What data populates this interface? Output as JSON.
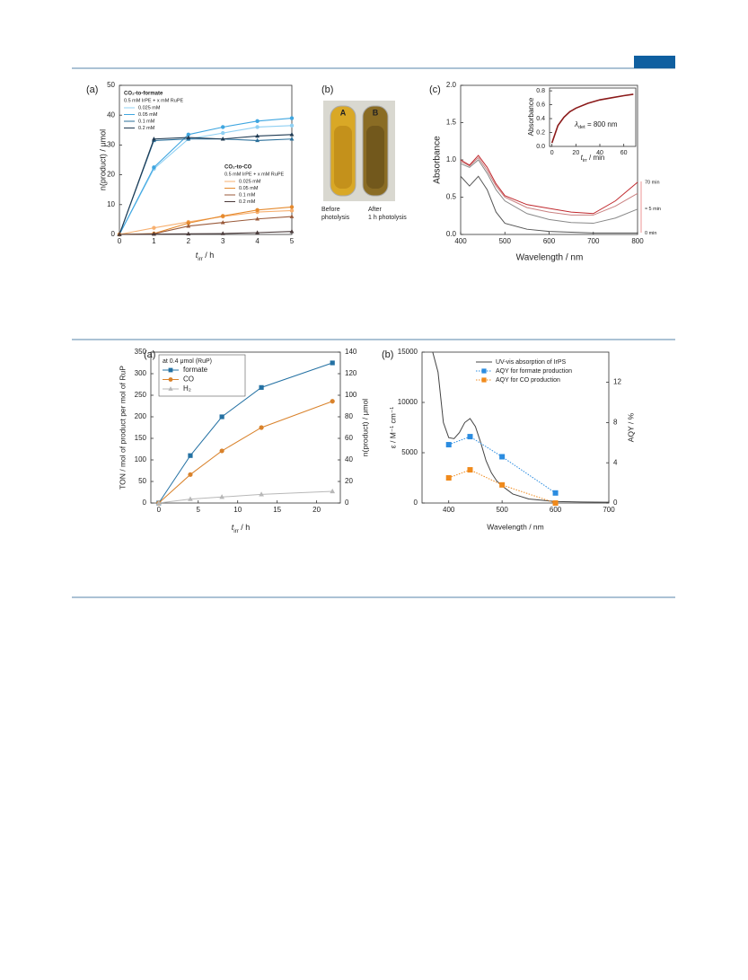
{
  "figure1": {
    "a": {
      "label": "(a)",
      "x_label": {
        "main": "t",
        "sub": "irr",
        "rest": " / h"
      },
      "y_label": "n(product) / μmol",
      "x": [
        0,
        1,
        2,
        3,
        4,
        5
      ],
      "xlim": [
        0,
        5
      ],
      "ylim": [
        0,
        50
      ],
      "xticks": [
        0,
        1,
        2,
        3,
        4,
        5
      ],
      "yticks": [
        0,
        10,
        20,
        30,
        40,
        50
      ],
      "legend_groups": [
        {
          "title": "CO₂-to-formate",
          "subtitle": "0.5 mM IrPE + x mM RuPE",
          "color": "#3aa0e0",
          "series": [
            {
              "name": "0.025 mM",
              "color": "#8fd0f3",
              "marker": "circle",
              "values": [
                0,
                22,
                32,
                34,
                36,
                36.5
              ]
            },
            {
              "name": "0.05 mM",
              "color": "#3fa6e0",
              "marker": "circle",
              "values": [
                0,
                22.5,
                33.5,
                36,
                38,
                39
              ]
            },
            {
              "name": "0.1 mM",
              "color": "#2a6f9a",
              "marker": "triangle",
              "values": [
                0,
                31.5,
                32,
                32,
                31.5,
                32
              ]
            },
            {
              "name": "0.2 mM",
              "color": "#1f3a52",
              "marker": "triangle",
              "values": [
                0,
                32,
                32.5,
                32,
                33,
                33.5
              ]
            }
          ]
        },
        {
          "title": "CO₂-to-CO",
          "subtitle": "0.5 mM IrPE + x mM RuPE",
          "color": "#f08a3c",
          "series": [
            {
              "name": "0.025 mM",
              "color": "#f7b070",
              "marker": "circle",
              "values": [
                0,
                2.2,
                4.2,
                6,
                7.5,
                8
              ]
            },
            {
              "name": "0.05 mM",
              "color": "#e58a2e",
              "marker": "circle",
              "values": [
                0,
                0.3,
                3.8,
                6.2,
                8.2,
                9.2
              ]
            },
            {
              "name": "0.1 mM",
              "color": "#9a5a3a",
              "marker": "triangle",
              "values": [
                0,
                0.2,
                2.8,
                4,
                5.2,
                6
              ]
            },
            {
              "name": "0.2 mM",
              "color": "#4a3a3a",
              "marker": "triangle",
              "values": [
                0,
                0.1,
                0.2,
                0.3,
                0.6,
                1
              ]
            }
          ]
        }
      ]
    },
    "b": {
      "label": "(b)",
      "tubes": [
        {
          "letter": "A",
          "caption": [
            "Before",
            "photolysis"
          ]
        },
        {
          "letter": "B",
          "caption": [
            "After",
            "1 h photolysis"
          ]
        }
      ]
    },
    "c": {
      "label": "(c)",
      "x_label": "Wavelength / nm",
      "y_label": "Absorbance",
      "x": [
        400,
        420,
        440,
        460,
        480,
        500,
        550,
        600,
        650,
        700,
        750,
        800
      ],
      "xlim": [
        400,
        800
      ],
      "ylim": [
        0,
        2
      ],
      "xticks": [
        400,
        500,
        600,
        700,
        800
      ],
      "yticks": [
        {
          "value": 0,
          "label": "0.0"
        },
        0.5,
        {
          "value": 1,
          "label": "1.0"
        },
        1.5,
        {
          "value": 2,
          "label": "2.0"
        }
      ],
      "series": [
        {
          "name": "0 min",
          "color": "#555555",
          "values": [
            0.78,
            0.65,
            0.78,
            0.6,
            0.3,
            0.15,
            0.07,
            0.04,
            0.03,
            0.02,
            0.02,
            0.02
          ]
        },
        {
          "name": "≈ 5 min",
          "color": "#888888",
          "values": [
            0.95,
            0.9,
            1.0,
            0.82,
            0.6,
            0.45,
            0.28,
            0.2,
            0.16,
            0.15,
            0.22,
            0.34
          ]
        },
        {
          "color": "#c98080",
          "values": [
            0.98,
            0.92,
            1.03,
            0.86,
            0.65,
            0.5,
            0.36,
            0.3,
            0.26,
            0.26,
            0.38,
            0.55
          ]
        },
        {
          "name": "70 min",
          "color": "#c0282d",
          "values": [
            1.0,
            0.93,
            1.06,
            0.9,
            0.68,
            0.52,
            0.4,
            0.35,
            0.3,
            0.28,
            0.45,
            0.7
          ]
        }
      ],
      "inset": {
        "x_label": {
          "main": "t",
          "sub": "irr",
          "rest": " / min"
        },
        "y_label": "Absorbance",
        "annotation": {
          "main": "λ",
          "sub": "det",
          "rest": " = 800 nm"
        },
        "x": [
          0,
          2,
          5,
          10,
          15,
          20,
          30,
          40,
          50,
          60,
          68
        ],
        "xlim": [
          -2,
          70
        ],
        "ylim": [
          0,
          0.84
        ],
        "xticks": [
          0,
          20,
          40,
          60
        ],
        "yticks": [
          {
            "value": 0,
            "label": "0.0"
          },
          0.2,
          0.4,
          0.6,
          0.8
        ],
        "series": [
          {
            "color": "#8b1a1a",
            "values": [
              0.05,
              0.15,
              0.3,
              0.42,
              0.5,
              0.55,
              0.62,
              0.67,
              0.7,
              0.73,
              0.75
            ]
          }
        ]
      }
    }
  },
  "figure2": {
    "a": {
      "label": "(a)",
      "x_label": {
        "main": "t",
        "sub": "irr",
        "rest": " / h"
      },
      "y_label": "TON / mol of product per mol of RuP",
      "y2_label": "n(product) / μmol",
      "legend_title": "at 0.4 μmol (RuP)",
      "x": [
        0,
        4,
        8,
        13,
        22
      ],
      "xlim": [
        -1,
        23
      ],
      "ylim": [
        0,
        350
      ],
      "y2lim": [
        0,
        140
      ],
      "xticks": [
        0,
        5,
        10,
        15,
        20
      ],
      "yticks": [
        0,
        50,
        100,
        150,
        200,
        250,
        300,
        350
      ],
      "y2ticks": [
        0,
        20,
        40,
        60,
        80,
        100,
        120,
        140
      ],
      "series": [
        {
          "name": "formate",
          "color": "#2471a3",
          "marker": "square",
          "values": [
            0,
            110,
            200,
            268,
            325
          ]
        },
        {
          "name": "CO",
          "color": "#d9822b",
          "marker": "circle",
          "values": [
            0,
            66,
            121,
            175,
            236
          ]
        },
        {
          "name": "H₂",
          "color": "#b8b8b8",
          "marker": "triangle",
          "values": [
            0,
            9,
            14,
            20,
            27
          ]
        }
      ]
    },
    "b": {
      "label": "(b)",
      "x_label": "Wavelength / nm",
      "y_label": "ε / M⁻¹ cm⁻¹",
      "y2_label": "AQY / %",
      "xlim": [
        350,
        700
      ],
      "ylim": [
        0,
        15000
      ],
      "y2lim": [
        0,
        15
      ],
      "xticks": [
        400,
        500,
        600,
        700
      ],
      "yticks": [
        0,
        5000,
        10000,
        15000
      ],
      "y2ticks": [
        0,
        4,
        8,
        12
      ],
      "series": [
        {
          "name": "UV-vis absorption of IrPS",
          "color": "#444444",
          "x": [
            370,
            380,
            390,
            400,
            410,
            420,
            430,
            440,
            450,
            460,
            470,
            480,
            490,
            500,
            520,
            550,
            600,
            650,
            700
          ],
          "values": [
            15000,
            13000,
            8000,
            6500,
            6400,
            7000,
            8000,
            8400,
            7600,
            6000,
            4200,
            3000,
            2200,
            1700,
            900,
            400,
            150,
            100,
            80
          ]
        },
        {
          "name": "AQY for formate production",
          "color": "#2b8ce0",
          "marker": "square",
          "dash": true,
          "axis": "y2",
          "x": [
            400,
            440,
            500,
            600
          ],
          "values": [
            5.8,
            6.6,
            4.6,
            1.0
          ]
        },
        {
          "name": "AQY for CO production",
          "color": "#f08a1c",
          "marker": "square",
          "dash": true,
          "axis": "y2",
          "x": [
            400,
            440,
            500,
            600
          ],
          "values": [
            2.5,
            3.3,
            1.8,
            0
          ]
        }
      ]
    }
  }
}
